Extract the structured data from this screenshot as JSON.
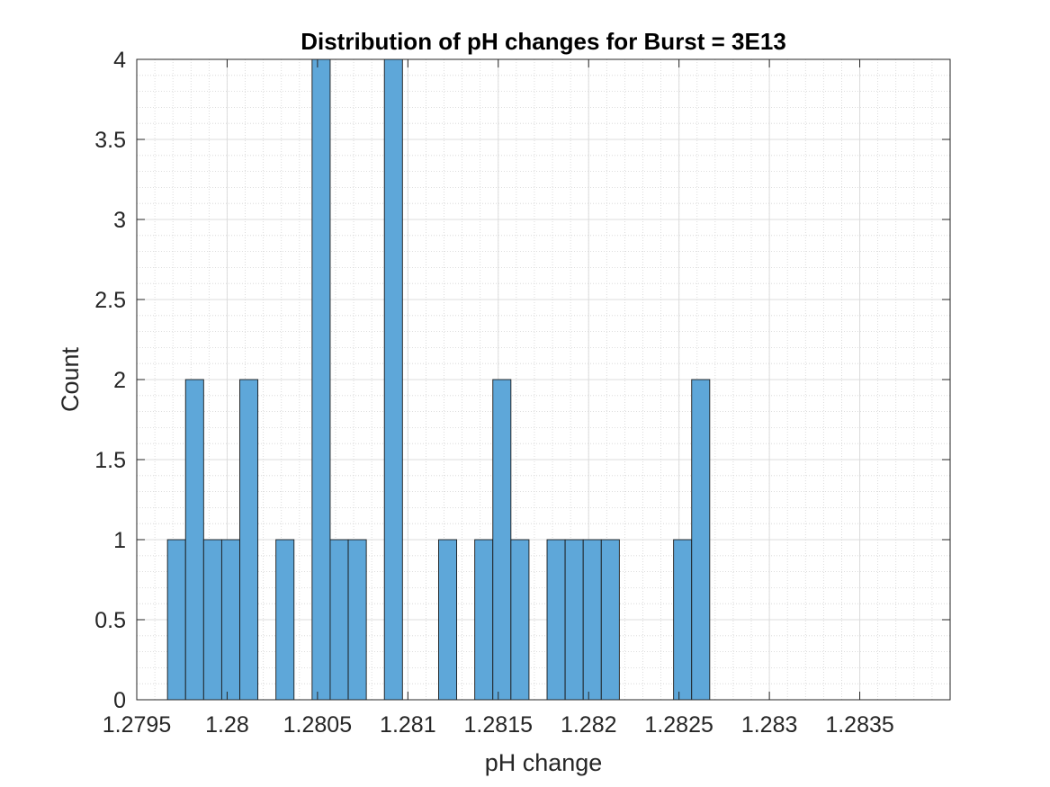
{
  "chart_data": {
    "type": "bar",
    "subtype": "histogram",
    "title": "Distribution of pH changes for Burst = 3E13",
    "xlabel": "pH change",
    "ylabel": "Count",
    "bin_width": 0.0001,
    "bin_edges_start": 1.27967,
    "bin_counts": [
      1,
      2,
      1,
      1,
      2,
      0,
      1,
      0,
      4,
      1,
      1,
      0,
      4,
      0,
      0,
      1,
      0,
      1,
      2,
      1,
      0,
      1,
      1,
      1,
      1,
      0,
      0,
      0,
      1,
      2
    ],
    "xlim": [
      1.2795,
      1.284
    ],
    "ylim": [
      0,
      4
    ],
    "xticks": [
      1.2795,
      1.28,
      1.2805,
      1.281,
      1.2815,
      1.282,
      1.2825,
      1.283,
      1.2835
    ],
    "xtick_labels": [
      "1.2795",
      "1.28",
      "1.2805",
      "1.281",
      "1.2815",
      "1.282",
      "1.2825",
      "1.283",
      "1.2835"
    ],
    "yticks": [
      0,
      0.5,
      1,
      1.5,
      2,
      2.5,
      3,
      3.5,
      4
    ],
    "ytick_labels": [
      "0",
      "0.5",
      "1",
      "1.5",
      "2",
      "2.5",
      "3",
      "3.5",
      "4"
    ],
    "grid": true,
    "minor_grid": true,
    "bar_color": "#5ea7d9",
    "bar_edge_color": "#1a1a1a"
  }
}
